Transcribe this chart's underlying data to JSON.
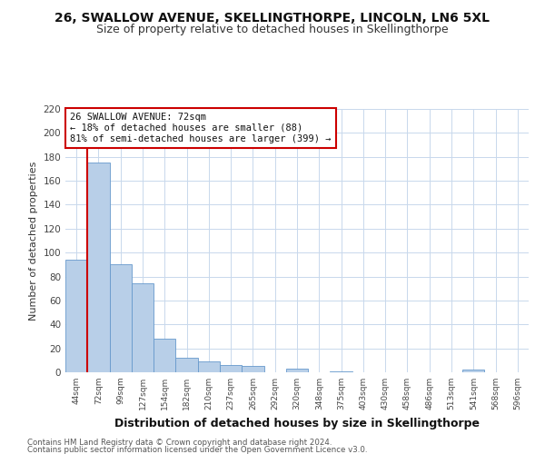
{
  "title": "26, SWALLOW AVENUE, SKELLINGTHORPE, LINCOLN, LN6 5XL",
  "subtitle": "Size of property relative to detached houses in Skellingthorpe",
  "bar_labels": [
    "44sqm",
    "72sqm",
    "99sqm",
    "127sqm",
    "154sqm",
    "182sqm",
    "210sqm",
    "237sqm",
    "265sqm",
    "292sqm",
    "320sqm",
    "348sqm",
    "375sqm",
    "403sqm",
    "430sqm",
    "458sqm",
    "486sqm",
    "513sqm",
    "541sqm",
    "568sqm",
    "596sqm"
  ],
  "bar_values": [
    94,
    175,
    90,
    74,
    28,
    12,
    9,
    6,
    5,
    0,
    3,
    0,
    1,
    0,
    0,
    0,
    0,
    0,
    2,
    0,
    0
  ],
  "bar_color": "#b8cfe8",
  "bar_edge_color": "#6699cc",
  "highlight_color": "#cc0000",
  "ylabel": "Number of detached properties",
  "xlabel": "Distribution of detached houses by size in Skellingthorpe",
  "ylim": [
    0,
    220
  ],
  "yticks": [
    0,
    20,
    40,
    60,
    80,
    100,
    120,
    140,
    160,
    180,
    200,
    220
  ],
  "annotation_title": "26 SWALLOW AVENUE: 72sqm",
  "annotation_line1": "← 18% of detached houses are smaller (88)",
  "annotation_line2": "81% of semi-detached houses are larger (399) →",
  "annotation_box_color": "#ffffff",
  "annotation_box_edge": "#cc0000",
  "footer_line1": "Contains HM Land Registry data © Crown copyright and database right 2024.",
  "footer_line2": "Contains public sector information licensed under the Open Government Licence v3.0.",
  "background_color": "#ffffff",
  "grid_color": "#c8d8ec",
  "title_fontsize": 10,
  "subtitle_fontsize": 9
}
